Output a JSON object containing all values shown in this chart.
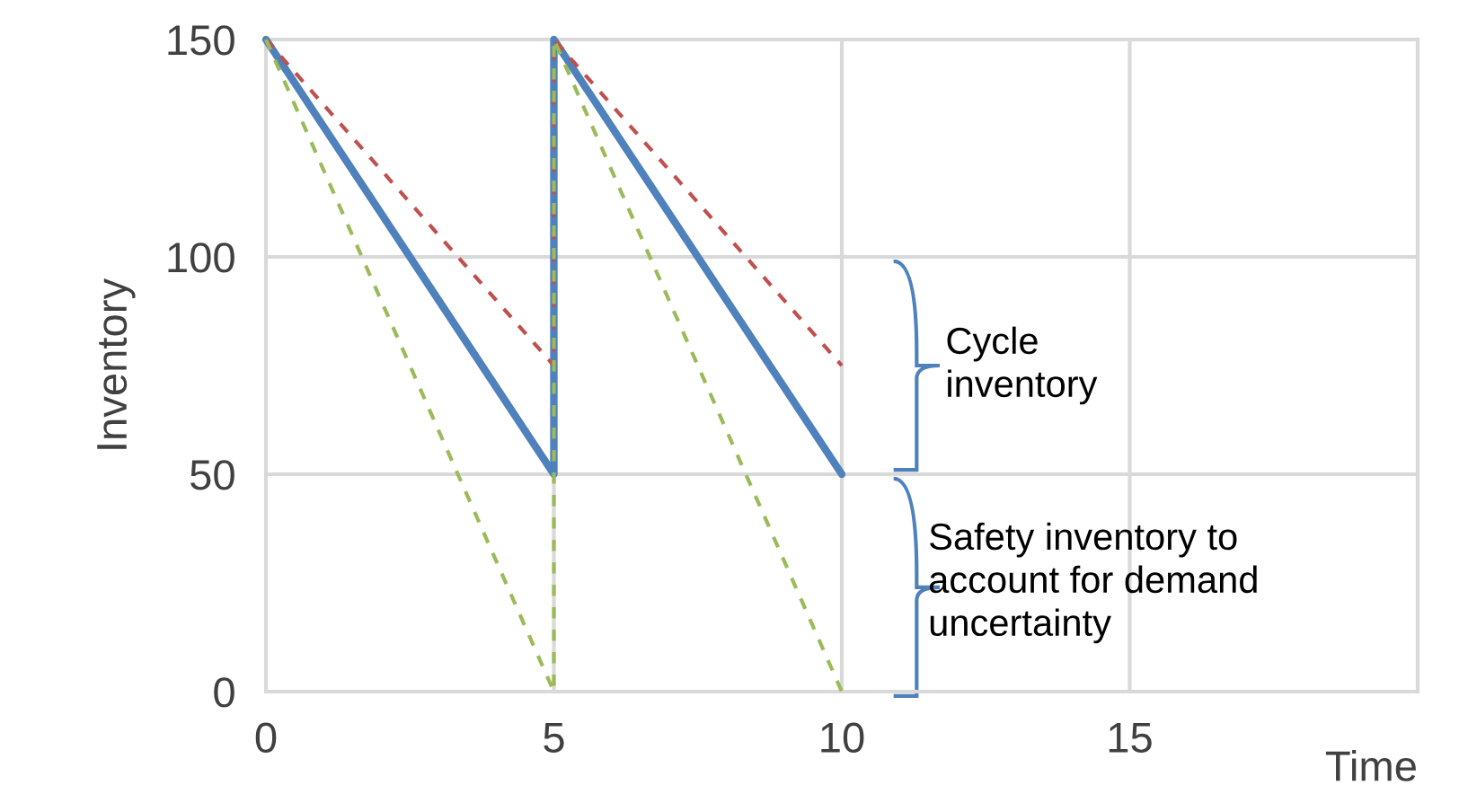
{
  "chart_data": {
    "type": "line",
    "xlabel": "Time",
    "ylabel": "Inventory",
    "xlim": [
      0,
      20
    ],
    "xticks": [
      0,
      5,
      10,
      15,
      {
        "value": 20,
        "label": null
      }
    ],
    "ylim": [
      0,
      150
    ],
    "yticks": [
      0,
      50,
      100,
      150
    ],
    "grid": true,
    "series": [
      {
        "color": "#4f81bd",
        "x": [
          0,
          5,
          5,
          10
        ],
        "values": [
          150,
          50,
          150,
          50
        ],
        "line_style": "solid"
      },
      {
        "color": "#c0504d",
        "x": [
          0,
          5,
          5,
          10
        ],
        "values": [
          150,
          75,
          150,
          75
        ],
        "line_style": "dashed"
      },
      {
        "color": "#9bbb59",
        "x": [
          0,
          5,
          5,
          10
        ],
        "values": [
          150,
          0,
          150,
          0
        ],
        "line_style": "dashed"
      }
    ],
    "annotations": [
      "Cycle\ninventory",
      "Safety inventory to\naccount for demand\nuncertainty"
    ]
  }
}
